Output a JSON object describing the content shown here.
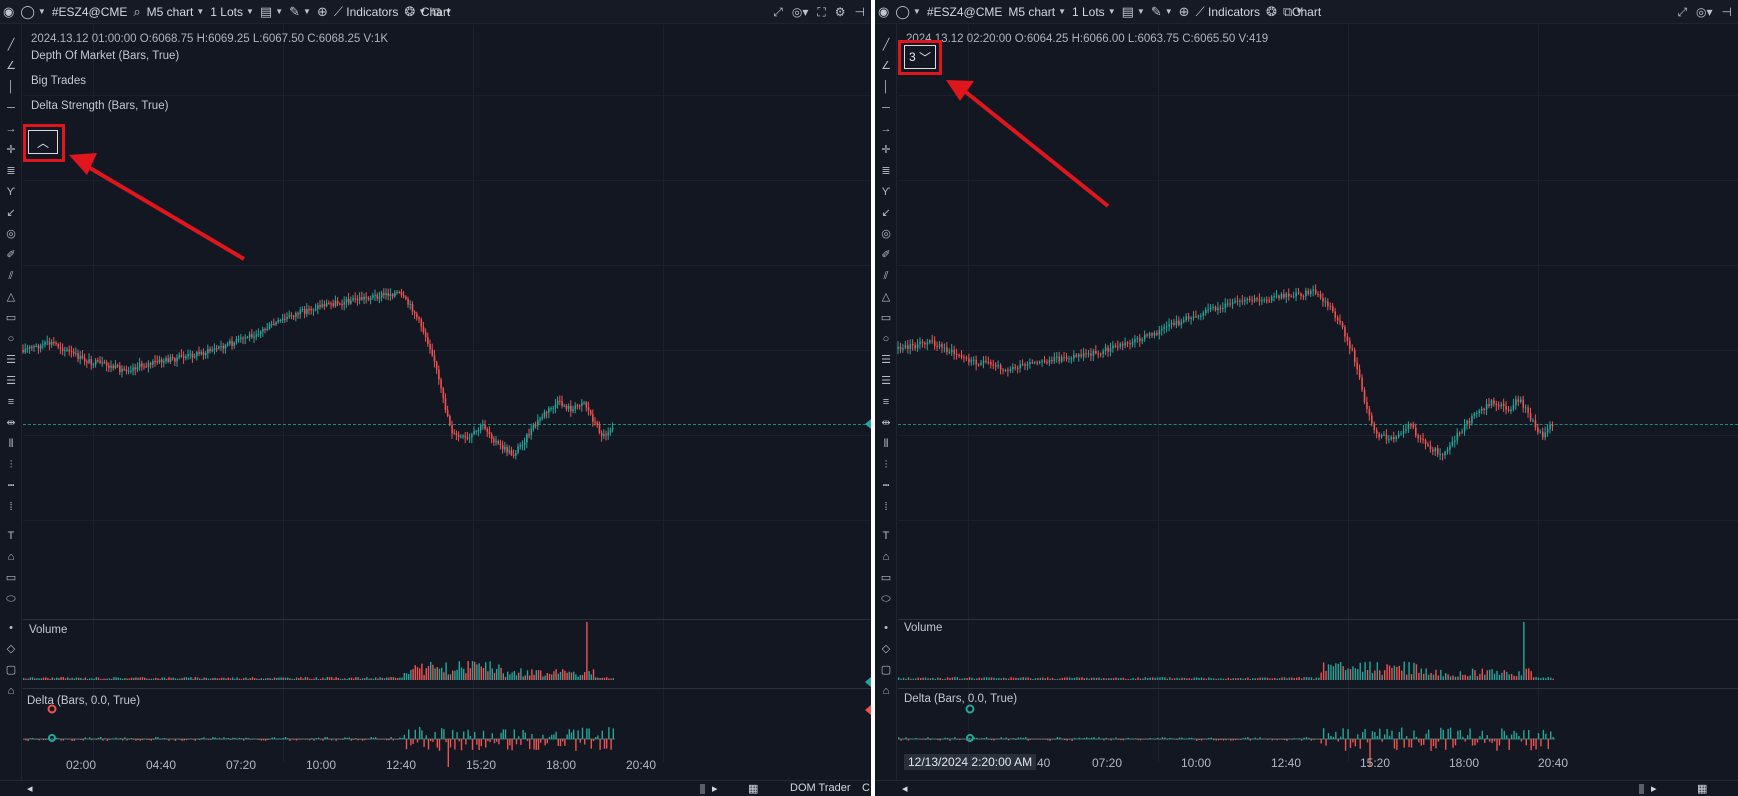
{
  "panels": [
    {
      "id": "left",
      "toolbar": {
        "symbol": "#ESZ4@CME",
        "chart_type": "M5 chart",
        "lots": "1 Lots",
        "indicators": "Indicators",
        "title": "Chart"
      },
      "ohlc": "2024.13.12 01:00:00 O:6068.75 H:6069.25 L:6067.50 C:6068.25 V:1K",
      "legend": [
        "Depth Of Market (Bars, True)",
        "Big Trades",
        "Delta Strength (Bars, True)"
      ],
      "collapse_label": "︿",
      "volume_label": "Volume",
      "delta_label": "Delta (Bars, 0.0, True)",
      "time_ticks": [
        "02:00",
        "04:40",
        "07:20",
        "10:00",
        "12:40",
        "15:20",
        "18:00",
        "20:40"
      ],
      "bottom": {
        "dom_trader": "DOM Trader",
        "clip": "C"
      }
    },
    {
      "id": "right",
      "toolbar": {
        "symbol": "#ESZ4@CME",
        "chart_type": "M5 chart",
        "lots": "1 Lots",
        "indicators": "Indicators",
        "title": "Chart"
      },
      "ohlc": "2024.13.12 02:20:00 O:6064.25 H:6066.00 L:6063.75 C:6065.50 V:419",
      "collapse_count": "3",
      "collapse_label": "﹀",
      "volume_label": "Volume",
      "delta_label": "Delta (Bars, 0.0, True)",
      "time_badge": "12/13/2024 2:20:00 AM",
      "time_ticks": [
        "40",
        "07:20",
        "10:00",
        "12:40",
        "15:20",
        "18:00",
        "20:40"
      ]
    }
  ],
  "colors": {
    "background": "#131722",
    "up": "#26a69a",
    "down": "#ef5350",
    "annotation": "#e0161d"
  },
  "icons": {
    "sidebar_tools": [
      "crosshair-icon",
      "trend-line-icon",
      "angle-icon",
      "vertical-line-icon",
      "horizontal-line-icon",
      "arrow-icon",
      "cross-icon",
      "fib-icon",
      "curve-icon",
      "pitchfork-icon",
      "zoom-icon",
      "ruler-icon",
      "channel-icon",
      "triangle-icon",
      "rectangle-icon",
      "circle-icon",
      "levels-icon",
      "levels2-icon",
      "levels3-icon",
      "pattern-icon",
      "projection-icon",
      "gann-icon",
      "dotted-icon",
      "dots-icon",
      "text-icon",
      "tag-icon",
      "callout-icon",
      "comment-icon",
      "dot-icon",
      "diamond-icon",
      "square-icon",
      "home-icon"
    ]
  }
}
